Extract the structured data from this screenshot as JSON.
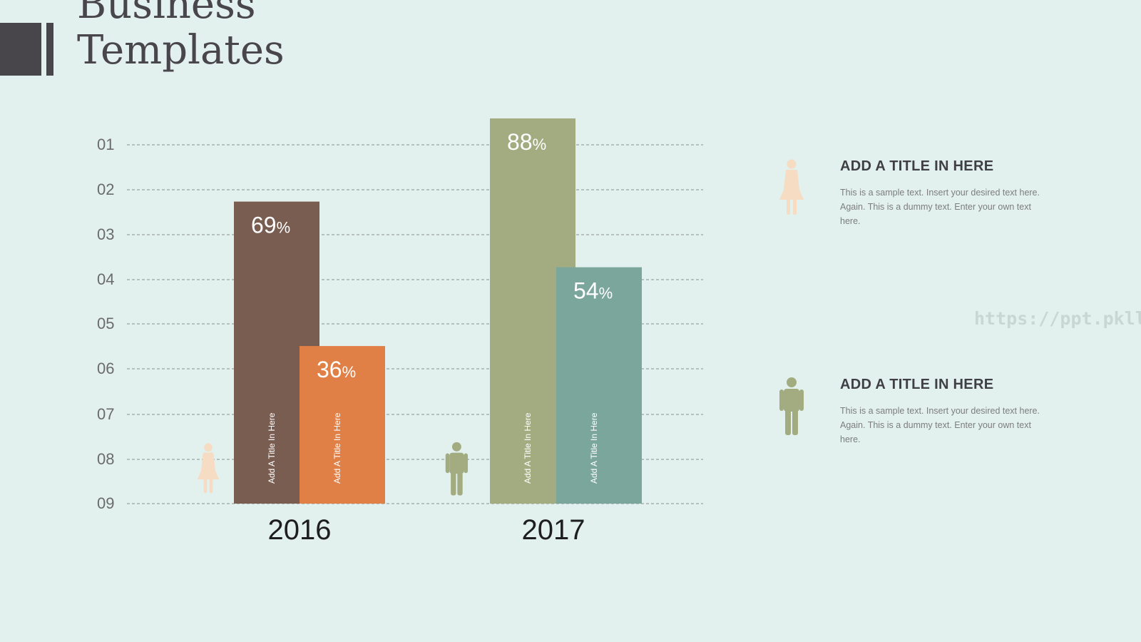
{
  "page": {
    "background": "#e2f1ee"
  },
  "title": {
    "line1": "Business",
    "line2": "Templates"
  },
  "chart_data": {
    "type": "bar",
    "y_tick_labels": [
      "01",
      "02",
      "03",
      "04",
      "05",
      "06",
      "07",
      "08",
      "09"
    ],
    "grid": true,
    "categories": [
      "2016",
      "2017"
    ],
    "series": [
      {
        "label": "Add A Title In Here",
        "color": "#7a5d51",
        "values": [
          69,
          88
        ],
        "label_suffix": "%"
      },
      {
        "label": "Add A Title In Here",
        "color": "#e08047",
        "values": [
          36,
          null
        ],
        "label_suffix": "%"
      },
      {
        "label": "Add A Title In Here",
        "color": "#7ba69c",
        "values": [
          null,
          54
        ],
        "label_suffix": "%"
      }
    ],
    "bar_colors_2017_first": "#a3ac80",
    "category_icons": [
      {
        "icon": "woman-icon",
        "color": "#f6dcc3"
      },
      {
        "icon": "man-icon",
        "color": "#a3ac80"
      }
    ]
  },
  "info_items": [
    {
      "icon": "woman-icon",
      "icon_color": "#f6dcc3",
      "title": "ADD A TITLE IN HERE",
      "body": "This is a sample text. Insert your desired text here. Again. This is a dummy text. Enter your own text here."
    },
    {
      "icon": "man-icon",
      "icon_color": "#a3ac80",
      "title": "ADD A TITLE IN HERE",
      "body": "This is a sample text. Insert your desired text here. Again. This is a dummy text. Enter your own text here."
    }
  ],
  "watermark": "https://ppt.pkll.de"
}
